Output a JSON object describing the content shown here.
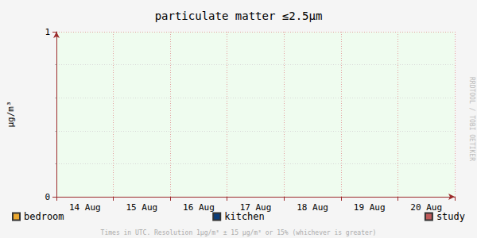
{
  "chart_data": {
    "type": "line",
    "title": "particulate matter ≤2.5µm",
    "ylabel": "µg/m³",
    "categories": [
      "14 Aug",
      "15 Aug",
      "16 Aug",
      "17 Aug",
      "18 Aug",
      "19 Aug",
      "20 Aug"
    ],
    "series": [
      {
        "name": "bedroom",
        "color": "#eaa831",
        "values": [
          null,
          null,
          null,
          null,
          null,
          null,
          null
        ]
      },
      {
        "name": "kitchen",
        "color": "#0c3d78",
        "values": [
          null,
          null,
          null,
          null,
          null,
          null,
          null
        ]
      },
      {
        "name": "study",
        "color": "#c05a5a",
        "values": [
          null,
          null,
          null,
          null,
          null,
          null,
          null
        ]
      }
    ],
    "ylim": [
      0,
      1
    ],
    "yticks": [
      0,
      1
    ],
    "grid": true,
    "legend": "bottom",
    "annotations": [
      "RRDTOOL / TOBI OETIKER",
      "Times in UTC. Resolution 1µg/m³ ± 15 µg/m³ or 15% (whichever is greater)"
    ]
  }
}
